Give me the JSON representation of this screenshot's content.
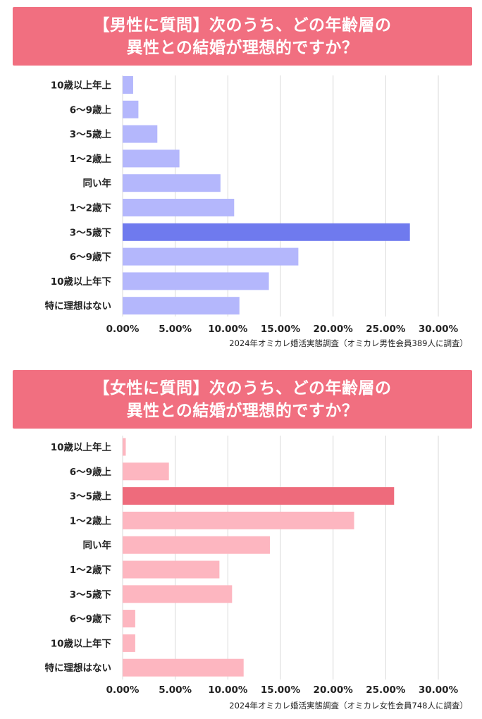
{
  "charts": [
    {
      "title_line1": "【男性に質問】次のうち、どの年齢層の",
      "title_line2": "異性との結婚が理想的ですか？",
      "source": "2024年オミカレ婚活実態調査（オミカレ男性会員389人に調査）",
      "colors": {
        "banner": "#f16f80",
        "bar": "#b4b7fc",
        "highlight": "#6f7aee"
      }
    },
    {
      "title_line1": "【女性に質問】次のうち、どの年齢層の",
      "title_line2": "異性との結婚が理想的ですか？",
      "source": "2024年オミカレ婚活実態調査（オミカレ女性会員748人に調査）",
      "colors": {
        "banner": "#f16f80",
        "bar": "#fdb6c0",
        "highlight": "#ee6b7c"
      }
    }
  ],
  "chart_data": [
    {
      "type": "bar",
      "orientation": "horizontal",
      "categories": [
        "10歳以上年上",
        "6〜9歳上",
        "3〜5歳上",
        "1〜2歳上",
        "同い年",
        "1〜2歳下",
        "3〜5歳下",
        "6〜9歳下",
        "10歳以上年下",
        "特に理想はない"
      ],
      "values": [
        1.0,
        1.5,
        3.3,
        5.4,
        9.3,
        10.6,
        27.3,
        16.7,
        13.9,
        11.1
      ],
      "highlight_index": 6,
      "xlim": [
        0,
        30
      ],
      "x_ticks": [
        "0.00%",
        "5.00%",
        "10.00%",
        "15.00%",
        "20.00%",
        "25.00%",
        "30.00%"
      ],
      "grid": true
    },
    {
      "type": "bar",
      "orientation": "horizontal",
      "categories": [
        "10歳以上年上",
        "6〜9歳上",
        "3〜5歳上",
        "1〜2歳上",
        "同い年",
        "1〜2歳下",
        "3〜5歳下",
        "6〜9歳下",
        "10歳以上年下",
        "特に理想はない"
      ],
      "values": [
        0.3,
        4.4,
        25.8,
        22.0,
        14.0,
        9.2,
        10.4,
        1.2,
        1.2,
        11.5
      ],
      "highlight_index": 2,
      "xlim": [
        0,
        30
      ],
      "x_ticks": [
        "0.00%",
        "5.00%",
        "10.00%",
        "15.00%",
        "20.00%",
        "25.00%",
        "30.00%"
      ],
      "grid": true
    }
  ]
}
